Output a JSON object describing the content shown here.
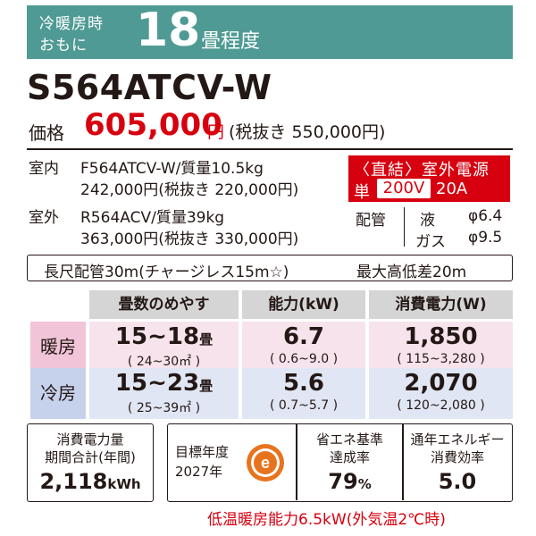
{
  "header": {
    "line1": "冷暖房時",
    "line2": "おもに",
    "tatami_value": "18",
    "tatami_unit": "畳程度"
  },
  "model": "S564ATCV-W",
  "price": {
    "label": "価格",
    "value": "605,000",
    "yen": "円",
    "tax_note": "(税抜き 550,000円)"
  },
  "indoor_unit": {
    "label": "室内",
    "model_weight": "F564ATCV-W/質量10.5kg",
    "price": "242,000円(税抜き 220,000円)"
  },
  "outdoor_unit": {
    "label": "室外",
    "model_weight": "R564ACV/質量39kg",
    "price": "363,000円(税抜き 330,000円)"
  },
  "power_supply": {
    "line1": "〈直結〉室外電源",
    "single": "単",
    "voltage": "200V",
    "amperage": "20A"
  },
  "piping": {
    "label": "配管",
    "liquid_label": "液",
    "liquid_size": "φ6.4",
    "gas_label": "ガス",
    "gas_size": "φ9.5",
    "max_length": "長尺配管30m(チャージレス15m☆)",
    "max_height": "最大高低差20m"
  },
  "table": {
    "headers": [
      "畳数のめやす",
      "能力(kW)",
      "消費電力(W)"
    ],
    "rows": [
      {
        "label": "暖房",
        "room": "15~18",
        "room_unit": "畳",
        "room_sub": "( 24~30㎡ )",
        "capacity": "6.7",
        "capacity_sub": "( 0.6~9.0 )",
        "power": "1,850",
        "power_sub": "( 115~3,280 )"
      },
      {
        "label": "冷房",
        "room": "15~23",
        "room_unit": "畳",
        "room_sub": "( 25~39㎡ )",
        "capacity": "5.6",
        "capacity_sub": "( 0.7~5.7 )",
        "power": "2,070",
        "power_sub": "( 120~2,080 )"
      }
    ]
  },
  "annual_consumption": {
    "line1": "消費電力量",
    "line2": "期間合計(年間)",
    "value": "2,118",
    "unit": "kWh"
  },
  "target_year": {
    "line1": "目標年度",
    "line2": "2027年",
    "mark_letter": "e"
  },
  "standard_achievement": {
    "line1": "省エネ基準",
    "line2": "達成率",
    "value": "79",
    "unit": "%"
  },
  "annual_efficiency": {
    "line1": "通年エネルギー",
    "line2": "消費効率",
    "value": "5.0"
  },
  "footnote": "低温暖房能力6.5kW(外気温2℃時)",
  "colors": {
    "header_bg": "#4f9a94",
    "price_red": "#d7000f",
    "warm_row": "#f7e3ec",
    "cool_row": "#e0e6f3",
    "eco_mark_orange": "#e8731e"
  }
}
